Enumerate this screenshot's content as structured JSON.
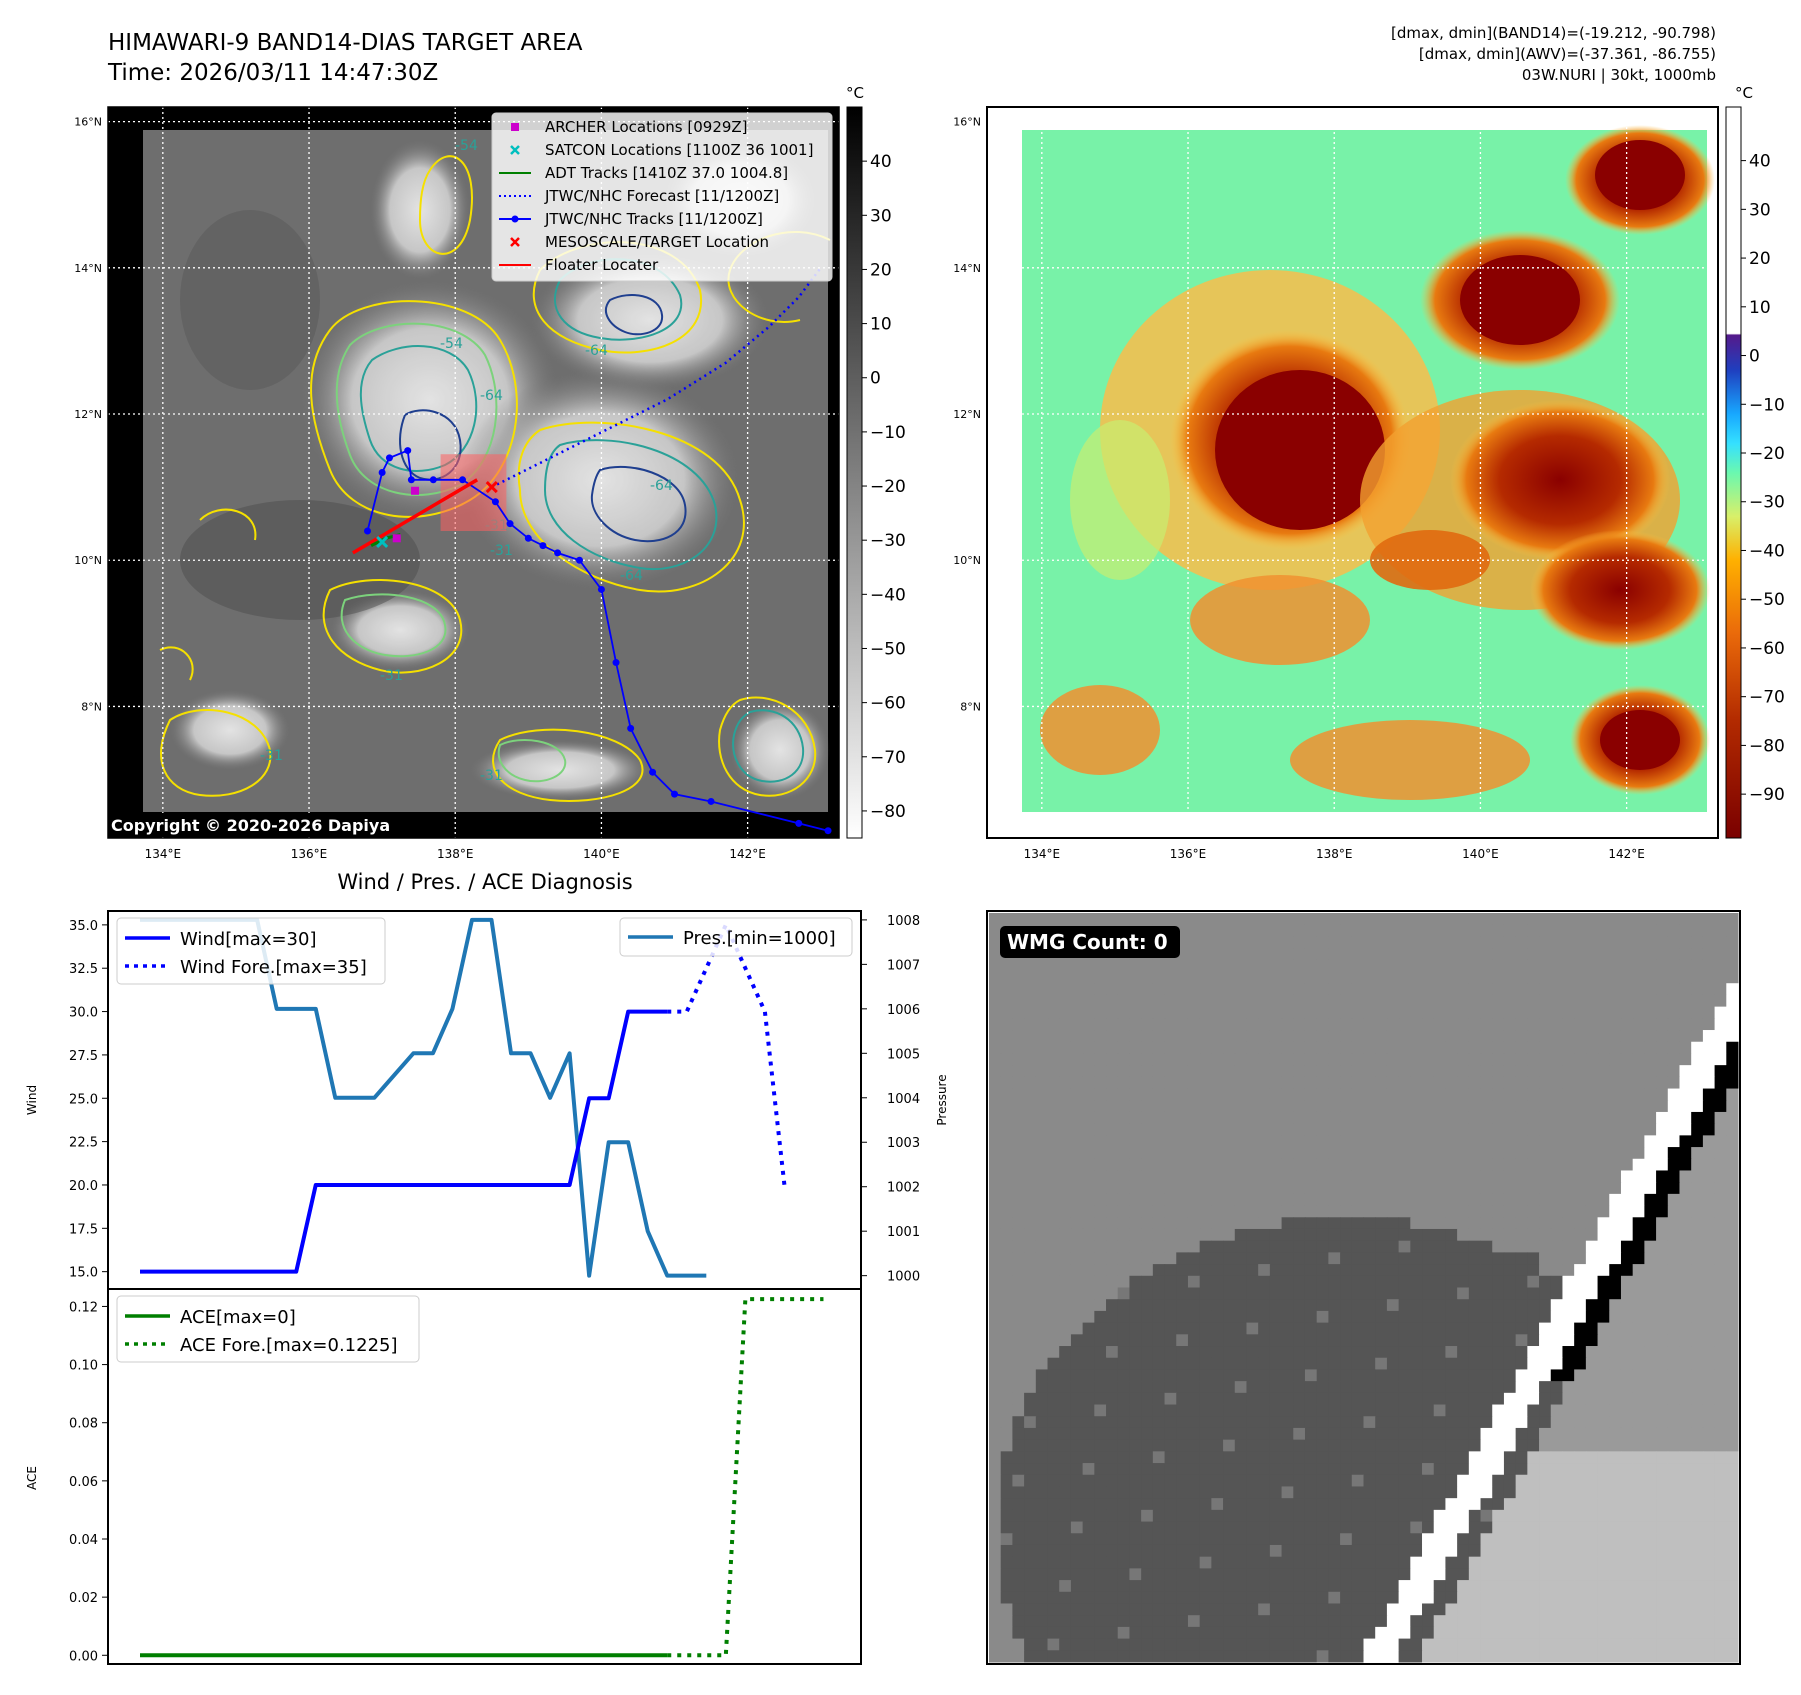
{
  "header": {
    "title_line1": "HIMAWARI-9 BAND14-DIAS TARGET AREA",
    "title_line2": "Time: 2026/03/11 14:47:30Z",
    "stat_line1": "[dmax, dmin](BAND14)=(-19.212, -90.798)",
    "stat_line2": "[dmax, dmin](AWV)=(-37.361, -86.755)",
    "stat_line3": "03W.NURI | 30kt, 1000mb"
  },
  "map_axes": {
    "lon_labels": [
      "134°E",
      "136°E",
      "138°E",
      "140°E",
      "142°E"
    ],
    "lat_labels": [
      "16°N",
      "14°N",
      "12°N",
      "10°N",
      "8°N"
    ],
    "lon_range": [
      133.25,
      143.25
    ],
    "lat_range": [
      6.2,
      16.2
    ]
  },
  "copyright": "Copyright © 2020-2026 Dapiya",
  "ir_colorbar": {
    "unit": "°C",
    "ticks": [
      "40",
      "30",
      "20",
      "10",
      "0",
      "−10",
      "−20",
      "−30",
      "−40",
      "−50",
      "−60",
      "−70",
      "−80"
    ]
  },
  "enh_colorbar": {
    "unit": "°C",
    "ticks": [
      "40",
      "30",
      "20",
      "10",
      "0",
      "−10",
      "−20",
      "−30",
      "−40",
      "−50",
      "−60",
      "−70",
      "−80",
      "−90"
    ]
  },
  "map_legend": [
    {
      "label": "ARCHER Locations [0929Z]",
      "color": "#cc00cc",
      "icon": "square-marker-icon"
    },
    {
      "label": "SATCON Locations [1100Z 36 1001]",
      "color": "#00bfbf",
      "icon": "x-marker-icon"
    },
    {
      "label": "ADT Tracks [1410Z 37.0 1004.8]",
      "color": "#008000",
      "icon": "solid-line-icon"
    },
    {
      "label": "JTWC/NHC Forecast [11/1200Z]",
      "color": "#0000ff",
      "icon": "dotted-line-icon"
    },
    {
      "label": "JTWC/NHC Tracks [11/1200Z]",
      "color": "#0000ff",
      "icon": "line-dot-icon"
    },
    {
      "label": "MESOSCALE/TARGET Location",
      "color": "#ff0000",
      "icon": "x-marker-icon"
    },
    {
      "label": "Floater Locater",
      "color": "#ff0000",
      "icon": "solid-line-icon"
    }
  ],
  "contour_labels": [
    "-54",
    "-64",
    "-31",
    "-31",
    "-64",
    "-64",
    "-31",
    "-31",
    "-64",
    "-54",
    "-31"
  ],
  "tracks": {
    "jtwc_track": [
      [
        143.1,
        6.3
      ],
      [
        142.7,
        6.4
      ],
      [
        141.5,
        6.7
      ],
      [
        141.0,
        6.8
      ],
      [
        140.7,
        7.1
      ],
      [
        140.4,
        7.7
      ],
      [
        140.2,
        8.6
      ],
      [
        140.0,
        9.6
      ],
      [
        139.7,
        10.0
      ],
      [
        139.4,
        10.1
      ],
      [
        139.2,
        10.2
      ],
      [
        139.0,
        10.3
      ],
      [
        138.75,
        10.5
      ],
      [
        138.55,
        10.8
      ],
      [
        138.1,
        11.1
      ],
      [
        137.7,
        11.1
      ],
      [
        137.4,
        11.1
      ],
      [
        137.35,
        11.5
      ],
      [
        137.1,
        11.4
      ],
      [
        137.0,
        11.2
      ],
      [
        136.8,
        10.4
      ]
    ],
    "jtwc_forecast": [
      [
        138.5,
        11.0
      ],
      [
        139.3,
        11.4
      ],
      [
        140.1,
        11.8
      ],
      [
        140.9,
        12.2
      ],
      [
        141.7,
        12.7
      ],
      [
        142.3,
        13.2
      ],
      [
        142.7,
        13.6
      ],
      [
        143.0,
        14.0
      ]
    ],
    "floater": [
      [
        136.6,
        10.1
      ],
      [
        138.3,
        11.1
      ]
    ],
    "adt_track": [
      [
        136.85,
        10.2
      ],
      [
        137.05,
        10.3
      ],
      [
        137.25,
        10.35
      ]
    ],
    "archer": [
      [
        137.45,
        10.95
      ],
      [
        137.2,
        10.3
      ]
    ],
    "satcon": [
      [
        137.0,
        10.25
      ]
    ],
    "target": [
      [
        138.5,
        11.0
      ]
    ],
    "target_box": {
      "lon": [
        137.8,
        138.7
      ],
      "lat": [
        10.4,
        11.45
      ]
    }
  },
  "diagnosis": {
    "title": "Wind / Pres. / ACE Diagnosis",
    "top_ylabel": "Wind",
    "right_ylabel": "Pressure",
    "ace_ylabel": "ACE",
    "wind_ticks": [
      "35.0",
      "32.5",
      "30.0",
      "27.5",
      "25.0",
      "22.5",
      "20.0",
      "17.5",
      "15.0"
    ],
    "pres_ticks": [
      "1008",
      "1007",
      "1006",
      "1005",
      "1004",
      "1003",
      "1002",
      "1001",
      "1000"
    ],
    "ace_ticks": [
      "0.12",
      "0.10",
      "0.08",
      "0.06",
      "0.04",
      "0.02",
      "0.00"
    ],
    "legend_wind": "Wind[max=30]",
    "legend_wind_fore": "Wind Fore.[max=35]",
    "legend_pres": "Pres.[min=1000]",
    "legend_ace": "ACE[max=0]",
    "legend_ace_fore": "ACE Fore.[max=0.1225]",
    "wind_color": "#0000ff",
    "pres_color": "#1f77b4",
    "ace_color": "#007f00"
  },
  "chart_data": [
    {
      "type": "line",
      "title": "Wind / Pres. / ACE Diagnosis",
      "ylabel": "Wind",
      "ylim": [
        14.0,
        35.8
      ],
      "x": [
        0,
        1,
        2,
        3,
        4,
        5,
        6,
        7,
        8,
        9,
        10,
        11,
        12,
        13,
        14,
        15,
        16,
        17,
        18,
        19,
        20,
        21,
        22,
        23,
        24,
        25,
        26,
        27,
        28,
        29,
        30,
        31,
        32,
        33,
        34,
        35,
        36,
        37
      ],
      "series": [
        {
          "name": "Wind[max=30]",
          "x": [
            0,
            8,
            9,
            22,
            23,
            24,
            25,
            26,
            27
          ],
          "values": [
            15,
            15,
            20,
            20,
            25,
            25,
            30,
            30,
            30
          ]
        },
        {
          "name": "Wind Fore.[max=35]",
          "x": [
            27,
            28,
            29,
            30,
            31,
            32,
            33
          ],
          "values": [
            30,
            30,
            32.5,
            35,
            32.5,
            30,
            20
          ]
        }
      ]
    },
    {
      "type": "line",
      "ylabel": "Pressure",
      "ylim": [
        999.7,
        1008.2
      ],
      "series": [
        {
          "name": "Pres.[min=1000]",
          "x": [
            0,
            6,
            7,
            9,
            10,
            12,
            14,
            15,
            16,
            17,
            18,
            19,
            20,
            21,
            22,
            23,
            24,
            25,
            26,
            27,
            28,
            29
          ],
          "values": [
            1008,
            1008,
            1006,
            1006,
            1004,
            1004,
            1005,
            1005,
            1006,
            1008,
            1008,
            1005,
            1005,
            1004,
            1005,
            1000,
            1003,
            1003,
            1001,
            1000,
            1000,
            1000
          ]
        }
      ]
    },
    {
      "type": "line",
      "ylabel": "ACE",
      "ylim": [
        -0.003,
        0.126
      ],
      "series": [
        {
          "name": "ACE[max=0]",
          "x": [
            0,
            27
          ],
          "values": [
            0,
            0
          ]
        },
        {
          "name": "ACE Fore.[max=0.1225]",
          "x": [
            27,
            30,
            31,
            32,
            33,
            34,
            35
          ],
          "values": [
            0,
            0,
            0.1225,
            0.1225,
            0.1225,
            0.1225,
            0.1225
          ]
        }
      ]
    }
  ],
  "wmg": {
    "label": "WMG Count: 0"
  }
}
